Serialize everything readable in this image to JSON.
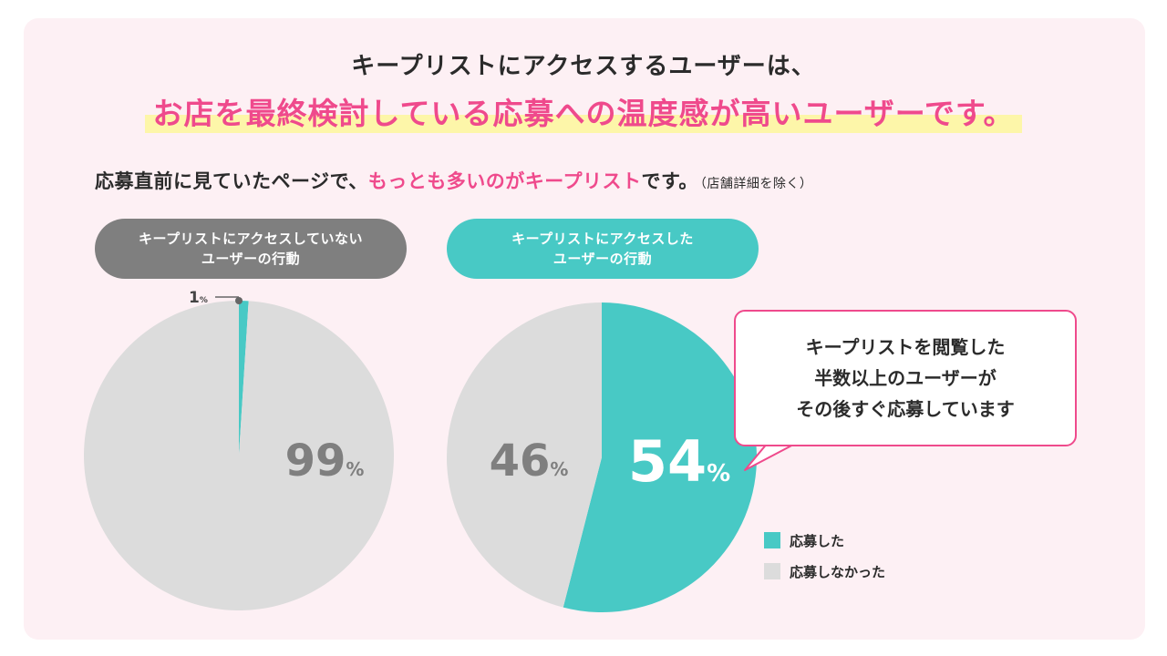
{
  "headline": {
    "line1": "キープリストにアクセスするユーザーは、",
    "line2": "お店を最終検討している応募への温度感が高いユーザーです。"
  },
  "subline": {
    "part1": "応募直前に見ていたページで、",
    "highlight": "もっとも多いのがキープリスト",
    "part2": "です。",
    "note": "（店舗詳細を除く）"
  },
  "colors": {
    "teal": "#48c9c5",
    "gray": "#dcdcdc",
    "pink": "#ef4a8c",
    "label_gray": "#7f7f7f"
  },
  "callout": {
    "text": "キープリストを閲覧した\n半数以上のユーザーが\nその後すぐ応募しています"
  },
  "chart_data": [
    {
      "type": "pie",
      "title": "キープリストにアクセスしていない\nユーザーの行動",
      "slices": [
        {
          "label": "応募した",
          "value": 1,
          "display": "1",
          "unit": "%",
          "color": "#48c9c5"
        },
        {
          "label": "応募しなかった",
          "value": 99,
          "display": "99",
          "unit": "%",
          "color": "#dcdcdc"
        }
      ]
    },
    {
      "type": "pie",
      "title": "キープリストにアクセスした\nユーザーの行動",
      "slices": [
        {
          "label": "応募した",
          "value": 54,
          "display": "54",
          "unit": "%",
          "color": "#48c9c5"
        },
        {
          "label": "応募しなかった",
          "value": 46,
          "display": "46",
          "unit": "%",
          "color": "#dcdcdc"
        }
      ]
    }
  ],
  "legend": [
    {
      "label": "応募した",
      "color": "#48c9c5"
    },
    {
      "label": "応募しなかった",
      "color": "#dcdcdc"
    }
  ]
}
